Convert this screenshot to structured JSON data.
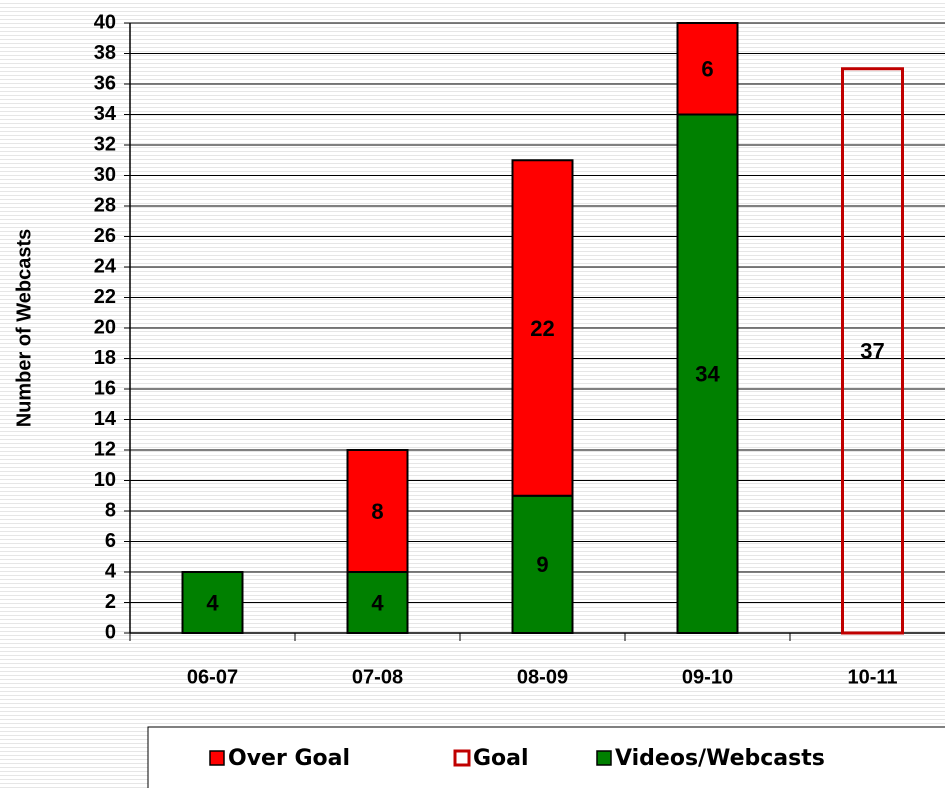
{
  "chart_data": {
    "type": "bar",
    "stacked": true,
    "ylabel": "Number of Webcasts",
    "categories": [
      "06-07",
      "07-08",
      "08-09",
      "09-10",
      "10-11"
    ],
    "series": [
      {
        "name": "Over Goal",
        "color": "#ff0000",
        "values": [
          null,
          8,
          22,
          6,
          null
        ]
      },
      {
        "name": "Goal",
        "color": "#c00000",
        "outline": true,
        "values": [
          null,
          null,
          null,
          null,
          37
        ]
      },
      {
        "name": "Videos/Webcasts",
        "color": "#008000",
        "values": [
          4,
          4,
          9,
          34,
          null
        ]
      }
    ],
    "ylim": [
      0,
      40
    ],
    "yticks": [
      0,
      2,
      4,
      6,
      8,
      10,
      12,
      14,
      16,
      18,
      20,
      22,
      24,
      26,
      28,
      30,
      32,
      34,
      36,
      38,
      40
    ],
    "grid": true,
    "legend": "bottom"
  }
}
